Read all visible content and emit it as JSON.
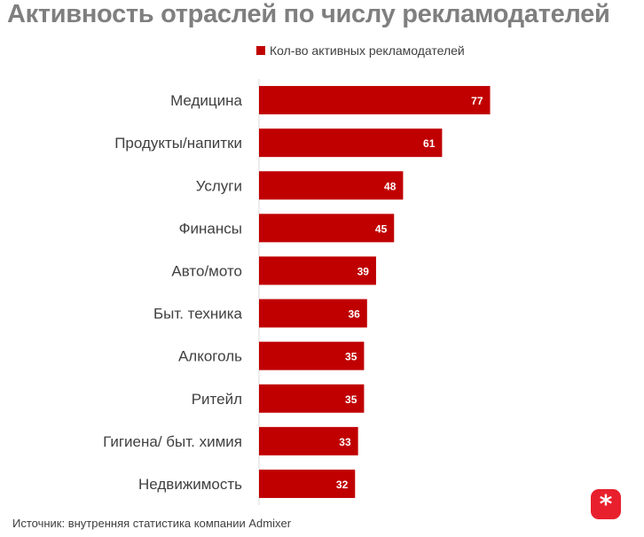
{
  "title": "Активность отраслей по числу рекламодателей",
  "source": "Источник: внутренняя статистика компании Admixer",
  "brand_icon": "asterisk-logo-icon",
  "colors": {
    "bar": "#c00000",
    "title": "#7f7f7f",
    "text": "#404040",
    "logo": "#e8202e"
  },
  "chart_data": {
    "type": "bar",
    "orientation": "horizontal",
    "title": "Активность отраслей по числу рекламодателей",
    "categories": [
      "Медицина",
      "Продукты/напитки",
      "Услуги",
      "Финансы",
      "Авто/мото",
      "Быт. техника",
      "Алкоголь",
      "Ритейл",
      "Гигиена/ быт. химия",
      "Недвижимость"
    ],
    "series": [
      {
        "name": "Кол-во активных рекламодателей",
        "values": [
          77,
          61,
          48,
          45,
          39,
          36,
          35,
          35,
          33,
          32
        ]
      }
    ],
    "xlim": [
      0,
      120
    ],
    "data_labels": true,
    "legend": "top",
    "grid": false
  }
}
